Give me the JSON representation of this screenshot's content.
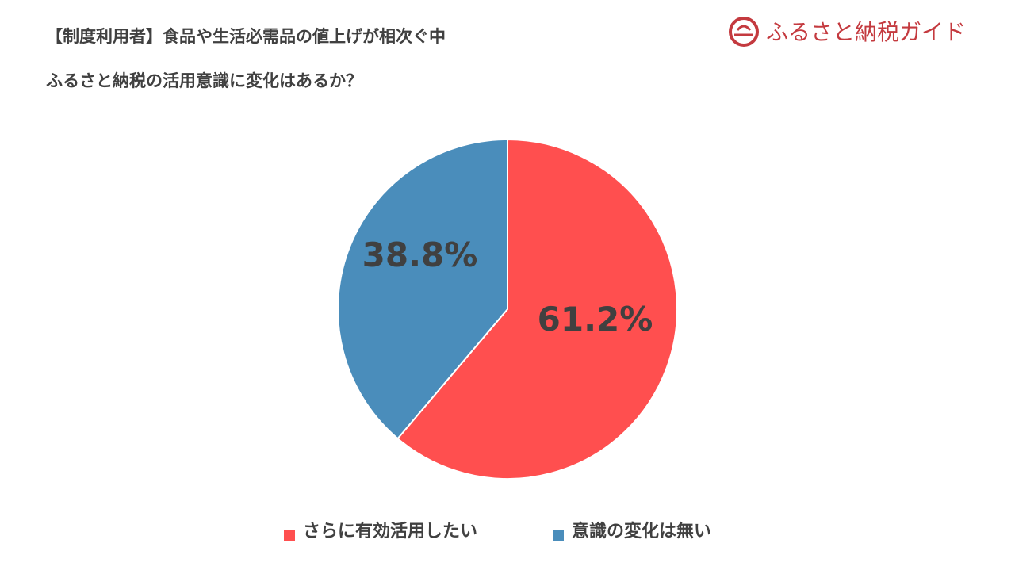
{
  "logo": "ふるさと納税ガイド",
  "chart_data": {
    "type": "pie",
    "title": "【制度利用者】食品や生活必需品の値上げが相次ぐ中",
    "subtitle": "ふるさと納税の活用意識に変化はあるか？",
    "categories": [
      "さらに有効活用したい",
      "意識の変化は無い"
    ],
    "values": [
      61.2,
      38.8
    ],
    "value_labels": [
      "61.2%",
      "38.8%"
    ],
    "colors": [
      "#ff4f4f",
      "#4a8dbb"
    ],
    "legend": "bottom"
  }
}
